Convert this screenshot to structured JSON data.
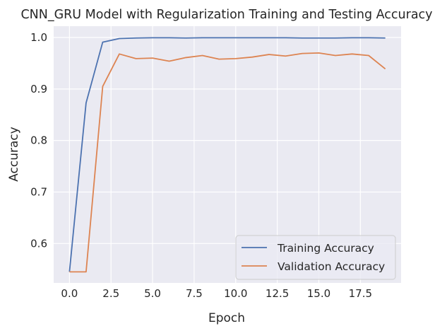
{
  "chart_data": {
    "type": "line",
    "title": "CNN_GRU Model with Regularization Training and Testing Accuracy",
    "xlabel": "Epoch",
    "ylabel": "Accuracy",
    "xlim": [
      -0.95,
      19.95
    ],
    "ylim": [
      0.5235,
      1.022
    ],
    "xticks": [
      0.0,
      2.5,
      5.0,
      7.5,
      10.0,
      12.5,
      15.0,
      17.5
    ],
    "xtick_labels": [
      "0.0",
      "2.5",
      "5.0",
      "7.5",
      "10.0",
      "12.5",
      "15.0",
      "17.5"
    ],
    "yticks": [
      0.6,
      0.7,
      0.8,
      0.9,
      1.0
    ],
    "ytick_labels": [
      "0.6",
      "0.7",
      "0.8",
      "0.9",
      "1.0"
    ],
    "grid": true,
    "legend_position": "lower-right",
    "x": [
      0,
      1,
      2,
      3,
      4,
      5,
      6,
      7,
      8,
      9,
      10,
      11,
      12,
      13,
      14,
      15,
      16,
      17,
      18,
      19
    ],
    "series": [
      {
        "name": "Training Accuracy",
        "color": "#4c72b0",
        "values": [
          0.545,
          0.873,
          0.991,
          0.998,
          0.999,
          0.9995,
          0.9995,
          0.999,
          0.9995,
          0.9995,
          0.9995,
          0.9995,
          0.9995,
          0.9995,
          0.999,
          0.999,
          0.999,
          0.9995,
          0.9995,
          0.999
        ]
      },
      {
        "name": "Validation Accuracy",
        "color": "#dd8452",
        "values": [
          0.545,
          0.545,
          0.905,
          0.968,
          0.959,
          0.96,
          0.954,
          0.961,
          0.965,
          0.958,
          0.959,
          0.962,
          0.967,
          0.964,
          0.969,
          0.97,
          0.965,
          0.968,
          0.965,
          0.939
        ]
      }
    ]
  },
  "colors": {
    "plot_background": "#eaeaf2",
    "grid": "#ffffff"
  }
}
